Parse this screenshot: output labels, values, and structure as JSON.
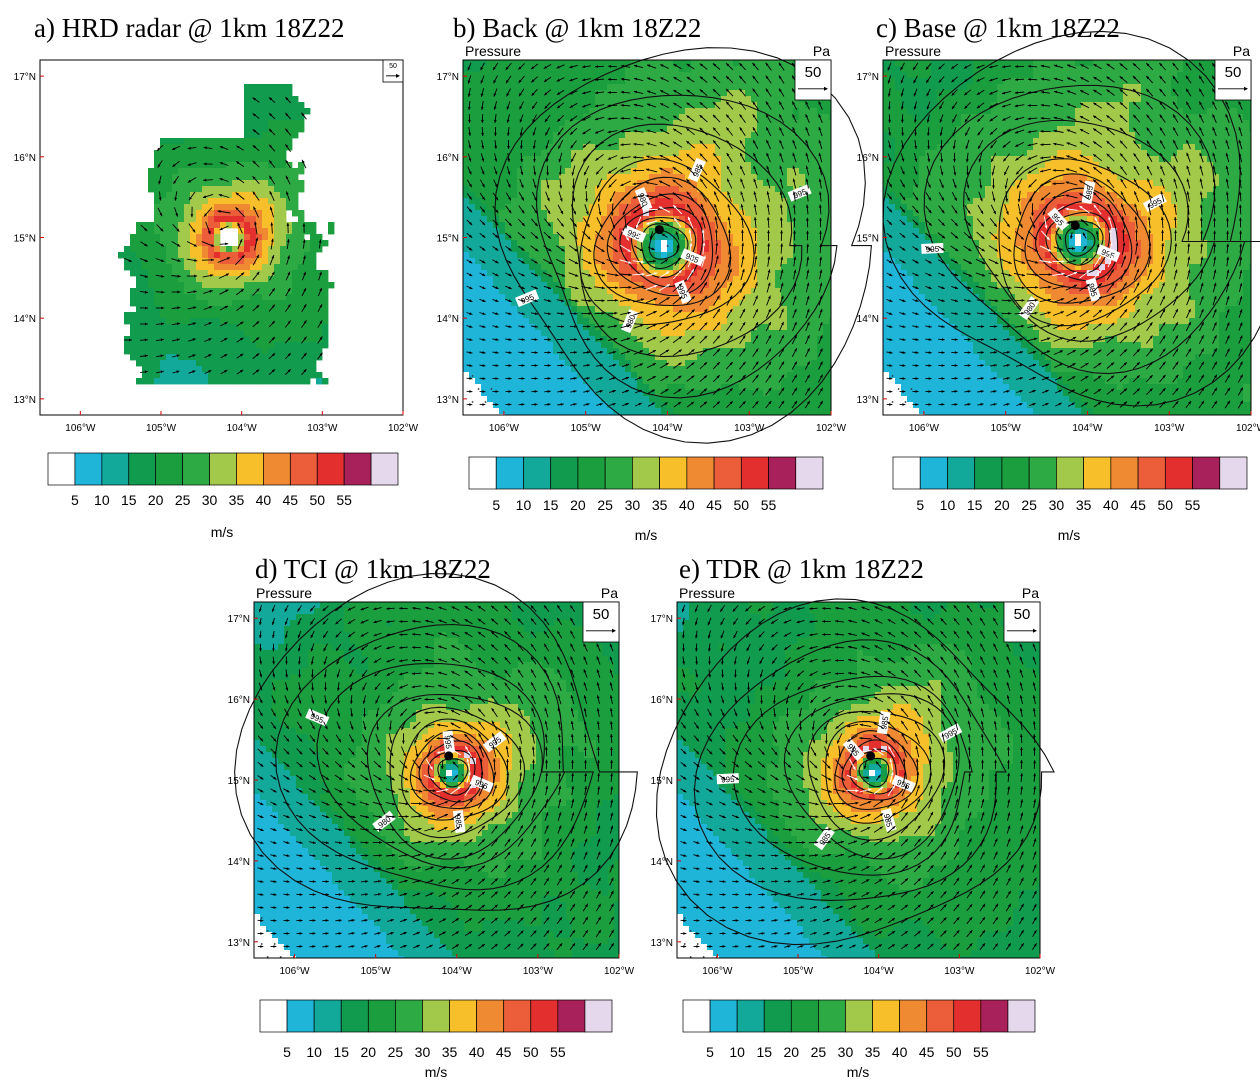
{
  "chart_data": {
    "type": "heatmap",
    "colorbar": {
      "ticks": [
        "5",
        "10",
        "15",
        "20",
        "25",
        "30",
        "35",
        "40",
        "45",
        "50",
        "55"
      ],
      "colors": [
        "#ffffff",
        "#1fb5d9",
        "#12a89a",
        "#119b4f",
        "#1b9e3e",
        "#2eaa45",
        "#a2c94a",
        "#f7bf2a",
        "#f08a32",
        "#ec5d3a",
        "#e3302e",
        "#a9215a",
        "#e6d8ec"
      ],
      "unit": "m/s"
    },
    "x_ticks": [
      "106°W",
      "105°W",
      "104°W",
      "103°W",
      "102°W"
    ],
    "y_ticks": [
      "17°N",
      "16°N",
      "15°N",
      "14°N",
      "13°N"
    ],
    "xlim": [
      -106.5,
      -102
    ],
    "ylim": [
      12.8,
      17.2
    ],
    "panels": [
      {
        "id": "a",
        "title": "a) HRD radar @ 1km 18Z22",
        "left_label": "",
        "right_label": "",
        "ref_vector": "50",
        "storm_center": [
          -104.15,
          15.0
        ],
        "vmax": 52,
        "rmw_deg": 0.25,
        "contour_labels": []
      },
      {
        "id": "b",
        "title": "b) Back @ 1km 18Z22",
        "left_label": "Pressure",
        "right_label": "Pa",
        "ref_vector": "50",
        "storm_center": [
          -104.05,
          14.9
        ],
        "vmax": 54,
        "rmw_deg": 0.45,
        "contour_labels": [
          "985",
          "995",
          "980",
          "995",
          "995",
          "980",
          "985",
          "995"
        ]
      },
      {
        "id": "c",
        "title": "c) Base @ 1km 18Z22",
        "left_label": "Pressure",
        "right_label": "Pa",
        "ref_vector": "50",
        "storm_center": [
          -104.1,
          14.95
        ],
        "vmax": 55,
        "rmw_deg": 0.42,
        "contour_labels": [
          "995",
          "985",
          "980",
          "995",
          "995",
          "985",
          "995"
        ]
      },
      {
        "id": "d",
        "title": "d) TCI @ 1km 18Z22",
        "left_label": "Pressure",
        "right_label": "Pa",
        "ref_vector": "50",
        "storm_center": [
          -104.05,
          15.1
        ],
        "vmax": 54,
        "rmw_deg": 0.28,
        "contour_labels": [
          "995",
          "985",
          "980",
          "995",
          "995",
          "995"
        ]
      },
      {
        "id": "e",
        "title": "e) TDR @ 1km 18Z22",
        "left_label": "Pressure",
        "right_label": "Pa",
        "ref_vector": "50",
        "storm_center": [
          -104.05,
          15.1
        ],
        "vmax": 53,
        "rmw_deg": 0.3,
        "contour_labels": [
          "995",
          "985",
          "985",
          "995",
          "995",
          "985",
          "995"
        ]
      }
    ]
  }
}
